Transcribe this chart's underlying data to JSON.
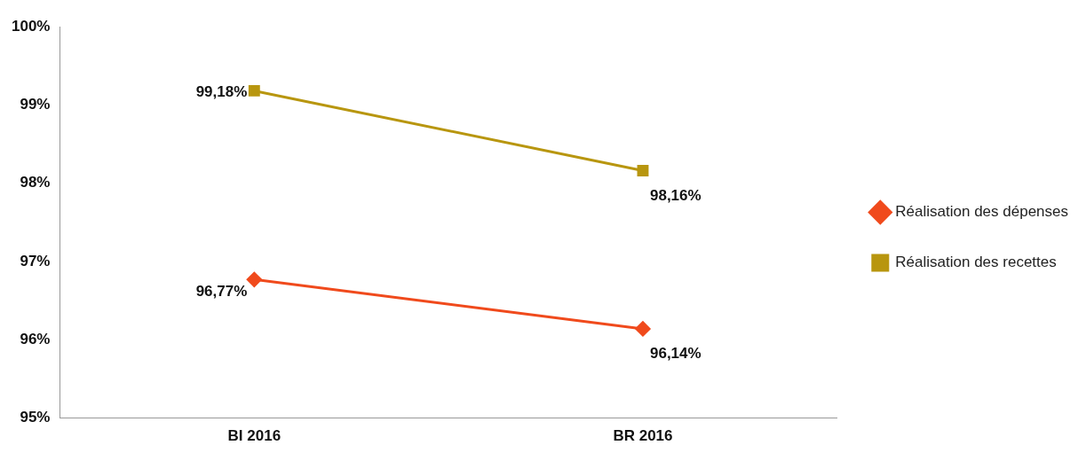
{
  "chart_data": {
    "type": "line",
    "categories": [
      "BI 2016",
      "BR 2016"
    ],
    "series": [
      {
        "name": "Réalisation des dépenses",
        "color": "#f04a1c",
        "marker": "diamond",
        "values": [
          96.77,
          96.14
        ],
        "value_labels": [
          "96,77%",
          "96,14%"
        ]
      },
      {
        "name": "Réalisation des recettes",
        "color": "#b8960f",
        "marker": "square",
        "values": [
          99.18,
          98.16
        ],
        "value_labels": [
          "99,18%",
          "98,16%"
        ]
      }
    ],
    "ylim": [
      95,
      100
    ],
    "yticks": [
      {
        "value": 95,
        "label": "95%"
      },
      {
        "value": 96,
        "label": "96%"
      },
      {
        "value": 97,
        "label": "97%"
      },
      {
        "value": 98,
        "label": "98%"
      },
      {
        "value": 99,
        "label": "99%"
      },
      {
        "value": 100,
        "label": "100%"
      }
    ],
    "grid": false,
    "legend": "right"
  }
}
